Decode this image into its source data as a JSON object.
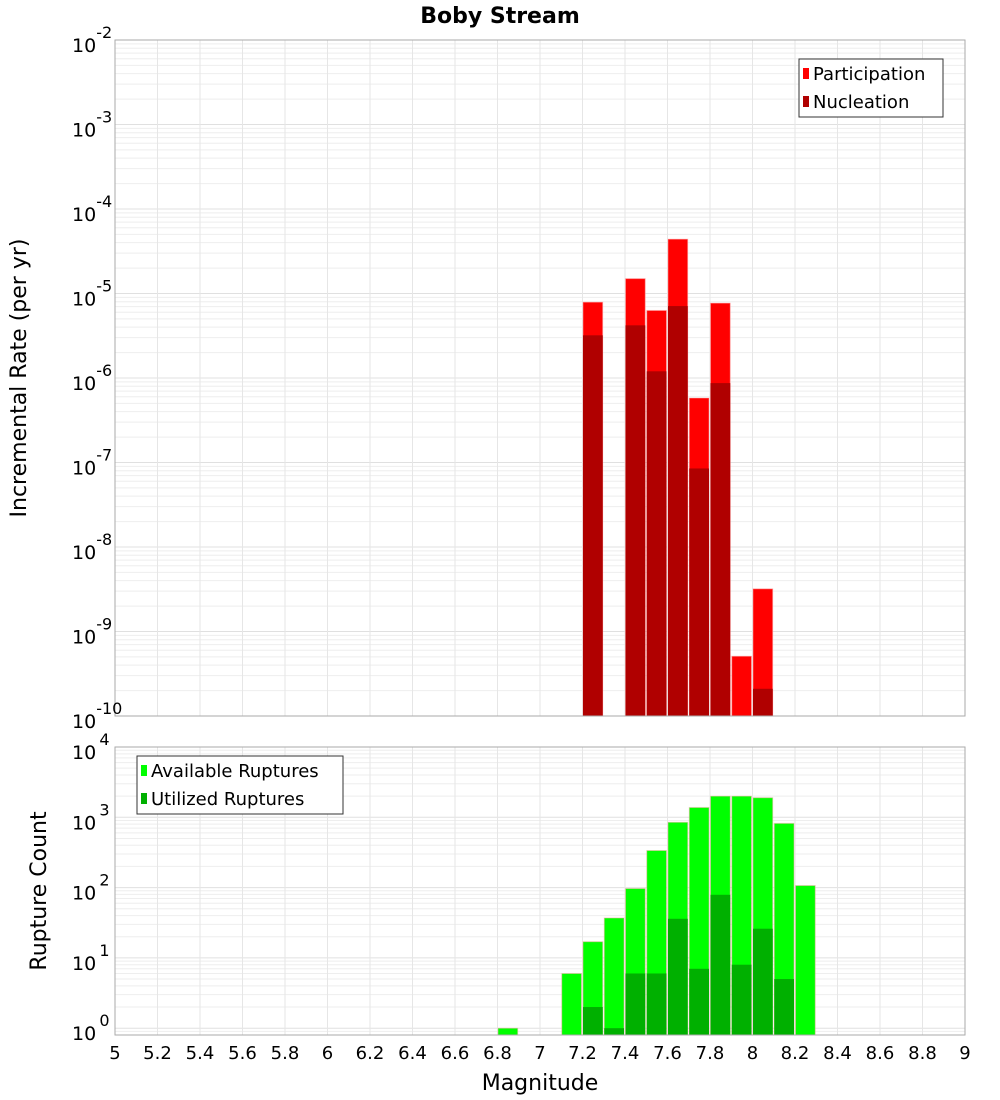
{
  "chart_data": [
    {
      "type": "bar",
      "title": "Boby Stream",
      "xlabel": "",
      "ylabel": "Incremental Rate (per yr)",
      "yscale": "log",
      "ylim": [
        1e-10,
        0.01
      ],
      "xlim": [
        5,
        9
      ],
      "grid": true,
      "legend_position": "top-right",
      "bin_width": 0.1,
      "x": [
        7.25,
        7.45,
        7.55,
        7.65,
        7.75,
        7.85,
        7.95,
        8.05
      ],
      "series": [
        {
          "name": "Participation",
          "color": "#ff0000",
          "values": [
            7.9e-06,
            1.5e-05,
            6.3e-06,
            4.4e-05,
            5.8e-07,
            7.7e-06,
            5.1e-10,
            3.2e-09
          ]
        },
        {
          "name": "Nucleation",
          "color": "#b00000",
          "values": [
            3.2e-06,
            4.2e-06,
            1.2e-06,
            7.1e-06,
            8.5e-08,
            8.7e-07,
            null,
            2.1e-10
          ]
        }
      ],
      "ytick_exponents": [
        "-2",
        "-3",
        "-4",
        "-5",
        "-6",
        "-7",
        "-8",
        "-9",
        "-10"
      ]
    },
    {
      "type": "bar",
      "title": "",
      "xlabel": "Magnitude",
      "ylabel": "Rupture Count",
      "yscale": "log",
      "ylim": [
        0.8,
        10000
      ],
      "xlim": [
        5,
        9
      ],
      "grid": true,
      "legend_position": "top-left",
      "bin_width": 0.1,
      "x": [
        6.85,
        7.15,
        7.25,
        7.35,
        7.45,
        7.55,
        7.65,
        7.75,
        7.85,
        7.95,
        8.05,
        8.15,
        8.25
      ],
      "series": [
        {
          "name": "Available Ruptures",
          "color": "#00ff00",
          "values": [
            1,
            6,
            17,
            37,
            97,
            337,
            850,
            1380,
            2000,
            2000,
            1900,
            820,
            107
          ]
        },
        {
          "name": "Utilized Ruptures",
          "color": "#00b000",
          "values": [
            null,
            null,
            2,
            1,
            6,
            6,
            36,
            7,
            79,
            8,
            26,
            5,
            null
          ]
        }
      ],
      "ytick_exponents": [
        "4",
        "3",
        "2",
        "1",
        "0"
      ],
      "xticks": [
        "5",
        "5.2",
        "5.4",
        "5.6",
        "5.8",
        "6",
        "6.2",
        "6.4",
        "6.6",
        "6.8",
        "7",
        "7.2",
        "7.4",
        "7.6",
        "7.8",
        "8",
        "8.2",
        "8.4",
        "8.6",
        "8.8",
        "9"
      ]
    }
  ]
}
